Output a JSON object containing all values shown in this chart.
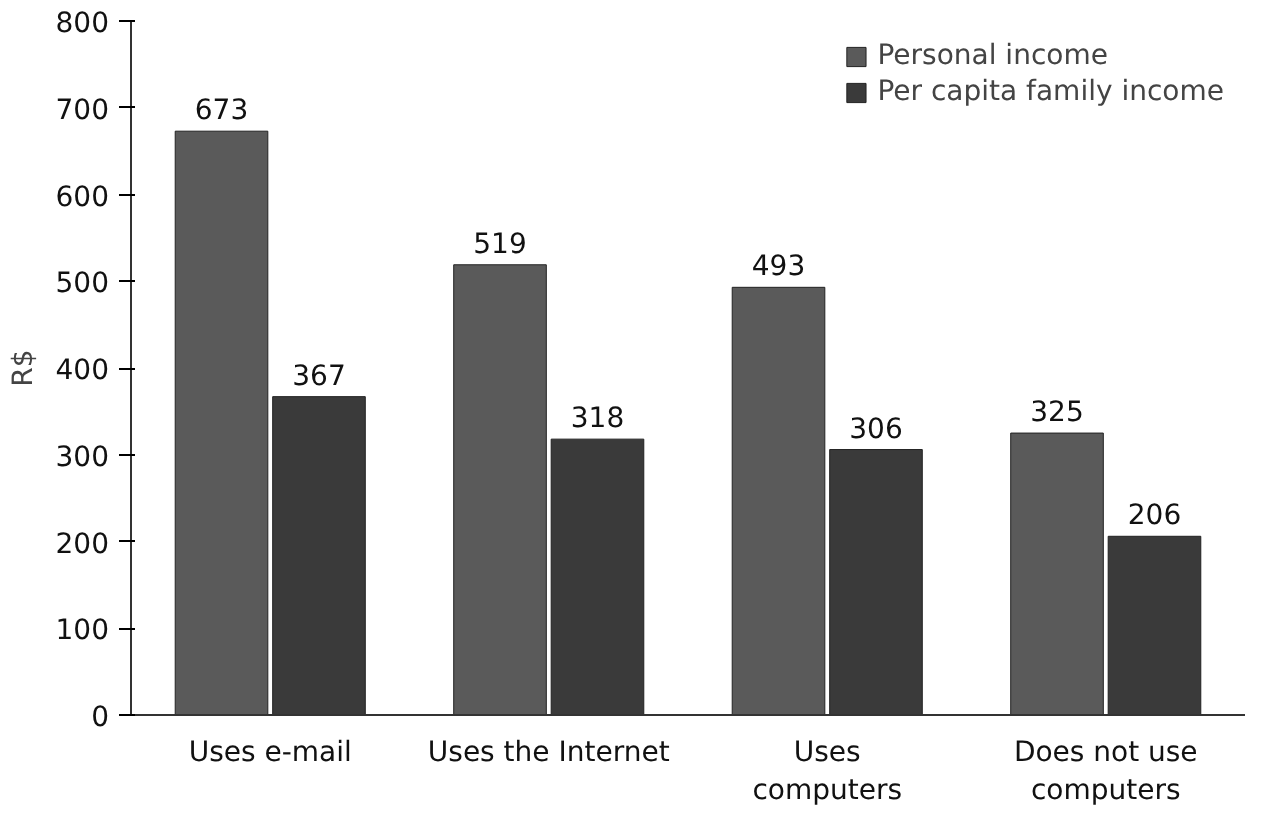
{
  "chart_data": {
    "type": "bar",
    "ylabel": "R$",
    "categories": [
      "Uses e-mail",
      "Uses the Internet",
      "Uses\ncomputers",
      "Does not use\ncomputers"
    ],
    "series": [
      {
        "name": "Personal income",
        "color": "#5a5a5a",
        "values": [
          673,
          519,
          493,
          325
        ]
      },
      {
        "name": "Per capita family income",
        "color": "#3a3a3a",
        "values": [
          367,
          318,
          306,
          206
        ]
      }
    ],
    "ylim": [
      0,
      800
    ],
    "yticks": [
      0,
      100,
      200,
      300,
      400,
      500,
      600,
      700,
      800
    ],
    "data_labels": true,
    "legend": "top right",
    "grid": false
  }
}
